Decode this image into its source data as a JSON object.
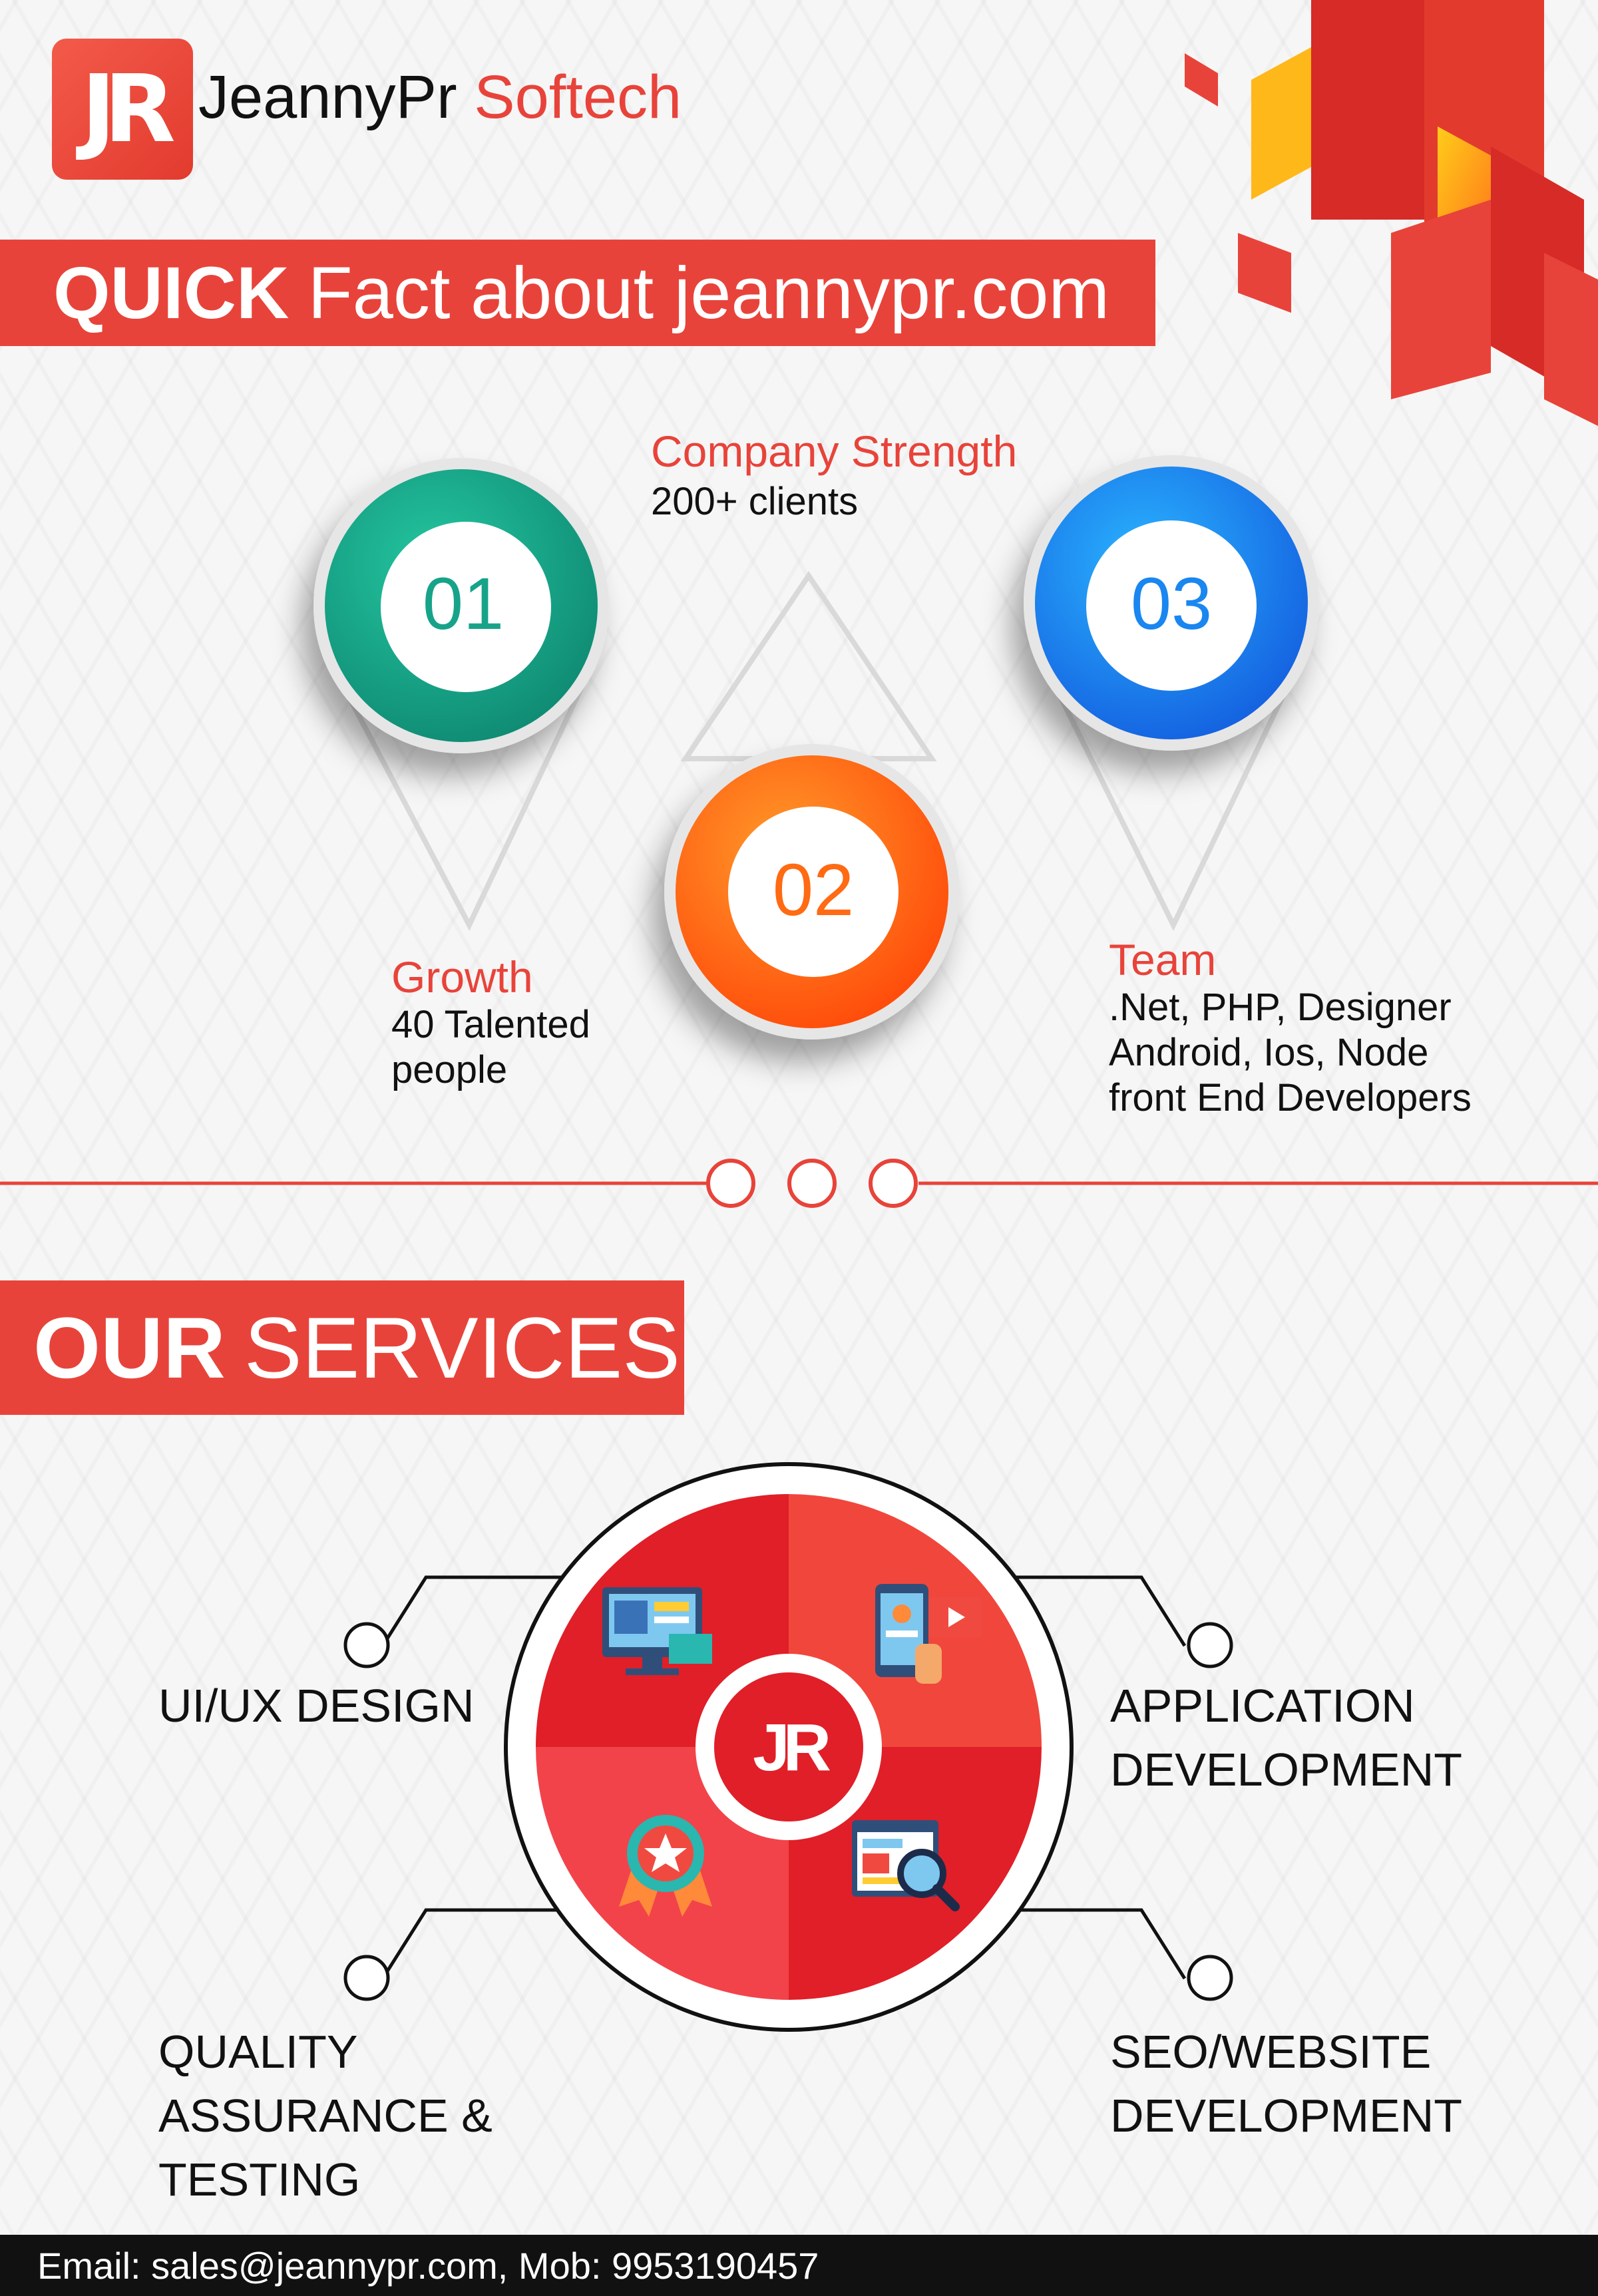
{
  "brand": {
    "logo_mark": "JR",
    "name_part1": "JeannyPr",
    "name_part2": "Softech"
  },
  "colors": {
    "accent": "#e8433a",
    "teal": "#17a389",
    "orange": "#ff6a13",
    "blue": "#1a86f0"
  },
  "quick_fact": {
    "heading_bold": "QUICK",
    "heading_rest": "Fact about jeannypr.com",
    "facts": [
      {
        "number": "01",
        "title": "Growth",
        "lines": [
          "40 Talented",
          "people"
        ]
      },
      {
        "number": "02",
        "title": "Company Strength",
        "lines": [
          "200+ clients"
        ]
      },
      {
        "number": "03",
        "title": "Team",
        "lines": [
          ".Net, PHP, Designer",
          "Android, Ios, Node",
          "front End Developers"
        ]
      }
    ]
  },
  "services": {
    "heading_bold": "OUR",
    "heading_rest": "SERVICES",
    "center_mark": "JR",
    "items": [
      {
        "lines": [
          "UI/UX DESIGN"
        ],
        "icon": "monitor-design-icon"
      },
      {
        "lines": [
          "APPLICATION",
          "DEVELOPMENT"
        ],
        "icon": "mobile-app-icon"
      },
      {
        "lines": [
          "QUALITY",
          "ASSURANCE &",
          "TESTING"
        ],
        "icon": "award-badge-icon"
      },
      {
        "lines": [
          "SEO/WEBSITE",
          "DEVELOPMENT"
        ],
        "icon": "web-search-icon"
      }
    ]
  },
  "footer": {
    "contact": "Email: sales@jeannypr.com, Mob: 9953190457"
  }
}
